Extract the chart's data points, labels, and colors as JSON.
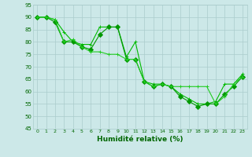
{
  "line1": {
    "x": [
      0,
      1,
      2,
      3,
      4,
      5,
      6,
      7,
      8,
      9,
      10,
      11,
      12,
      13,
      14,
      15,
      16,
      17,
      18,
      19,
      20,
      21,
      22,
      23
    ],
    "y": [
      90,
      90,
      89,
      84,
      80,
      79,
      79,
      86,
      86,
      86,
      74,
      80,
      64,
      63,
      63,
      62,
      59,
      57,
      55,
      55,
      56,
      63,
      63,
      67
    ],
    "color": "#00bb00",
    "marker": "+"
  },
  "line2": {
    "x": [
      0,
      1,
      2,
      3,
      4,
      5,
      6,
      7,
      8,
      9,
      10,
      11,
      12,
      13,
      14,
      15,
      16,
      17,
      18,
      19,
      20,
      21,
      22,
      23
    ],
    "y": [
      90,
      90,
      88,
      80,
      80,
      78,
      77,
      83,
      86,
      86,
      73,
      73,
      64,
      62,
      63,
      62,
      58,
      56,
      54,
      55,
      55,
      59,
      62,
      66
    ],
    "color": "#009900",
    "marker": "D"
  },
  "line3": {
    "x": [
      0,
      1,
      2,
      3,
      4,
      5,
      6,
      7,
      8,
      9,
      10,
      11,
      12,
      13,
      14,
      15,
      16,
      17,
      18,
      19,
      20,
      21,
      22,
      23
    ],
    "y": [
      90,
      90,
      89,
      80,
      81,
      78,
      76,
      76,
      75,
      75,
      73,
      73,
      64,
      62,
      63,
      62,
      62,
      62,
      62,
      62,
      55,
      58,
      63,
      66
    ],
    "color": "#22cc22",
    "marker": "+"
  },
  "xlabel": "Humidité relative (%)",
  "xlim": [
    -0.5,
    23.5
  ],
  "ylim": [
    45,
    95
  ],
  "yticks": [
    45,
    50,
    55,
    60,
    65,
    70,
    75,
    80,
    85,
    90,
    95
  ],
  "xticks": [
    0,
    1,
    2,
    3,
    4,
    5,
    6,
    7,
    8,
    9,
    10,
    11,
    12,
    13,
    14,
    15,
    16,
    17,
    18,
    19,
    20,
    21,
    22,
    23
  ],
  "bg_color": "#cce8e8",
  "grid_color": "#aacccc",
  "line_width": 0.8,
  "marker_size": 3
}
